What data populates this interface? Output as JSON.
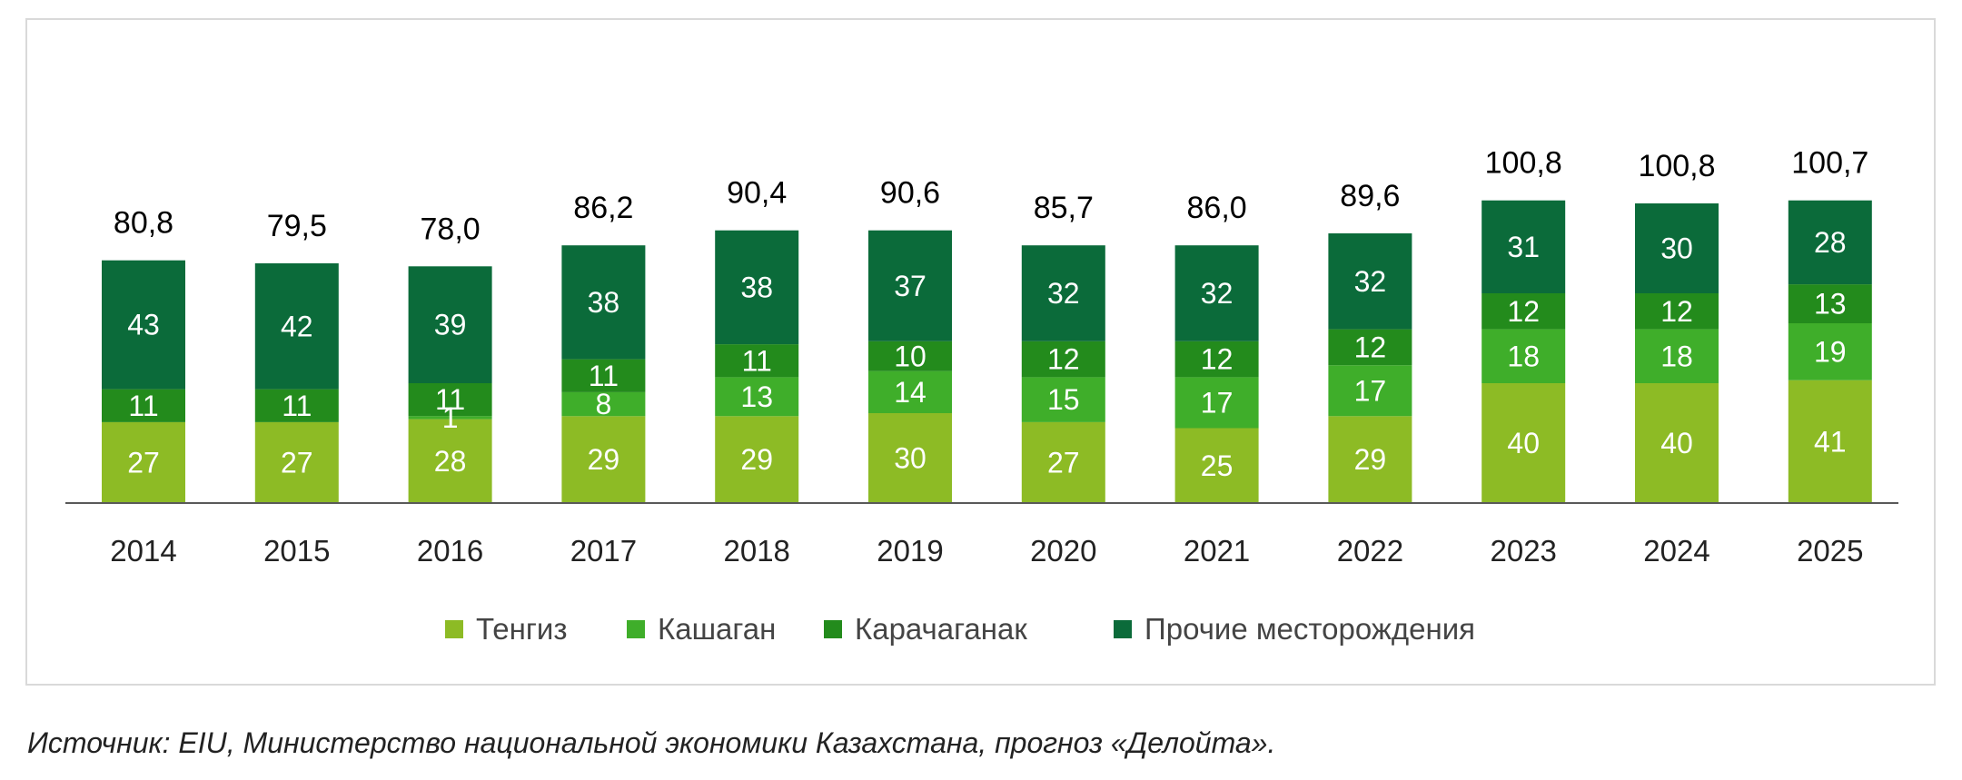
{
  "chart_data": {
    "type": "bar",
    "stacked": true,
    "categories": [
      "2014",
      "2015",
      "2016",
      "2017",
      "2018",
      "2019",
      "2020",
      "2021",
      "2022",
      "2023",
      "2024",
      "2025"
    ],
    "series": [
      {
        "name": "Тенгиз",
        "color": "#8dbb25",
        "values": [
          27,
          27,
          28,
          29,
          29,
          30,
          27,
          25,
          29,
          40,
          40,
          41
        ],
        "labels": [
          "27",
          "27",
          "28",
          "29",
          "29",
          "30",
          "27",
          "25",
          "29",
          "40",
          "40",
          "41"
        ]
      },
      {
        "name": "Кашаган",
        "color": "#3fae2a",
        "values": [
          0,
          0,
          1,
          8,
          13,
          14,
          15,
          17,
          17,
          18,
          18,
          19
        ],
        "labels": [
          "",
          "",
          "1",
          "8",
          "13",
          "14",
          "15",
          "17",
          "17",
          "18",
          "18",
          "19"
        ]
      },
      {
        "name": "Карачаганак",
        "color": "#238b1c",
        "values": [
          11,
          11,
          11,
          11,
          11,
          10,
          12,
          12,
          12,
          12,
          12,
          13
        ],
        "labels": [
          "11",
          "11",
          "11",
          "11",
          "11",
          "10",
          "12",
          "12",
          "12",
          "12",
          "12",
          "13"
        ]
      },
      {
        "name": "Прочие месторождения",
        "color": "#0b6b3a",
        "values": [
          43,
          42,
          39,
          38,
          38,
          37,
          32,
          32,
          32,
          31,
          30,
          28
        ],
        "labels": [
          "43",
          "42",
          "39",
          "38",
          "38",
          "37",
          "32",
          "32",
          "32",
          "31",
          "30",
          "28"
        ]
      }
    ],
    "totals": [
      "80,8",
      "79,5",
      "78,0",
      "86,2",
      "90,4",
      "90,6",
      "85,7",
      "86,0",
      "89,6",
      "100,8",
      "100,8",
      "100,7"
    ],
    "ylim": [
      0,
      110
    ],
    "legend_position": "bottom",
    "grid": false
  },
  "source_note": "Источник: EIU,  Министерство национальной экономики Казахстана, прогноз «Делойта»."
}
